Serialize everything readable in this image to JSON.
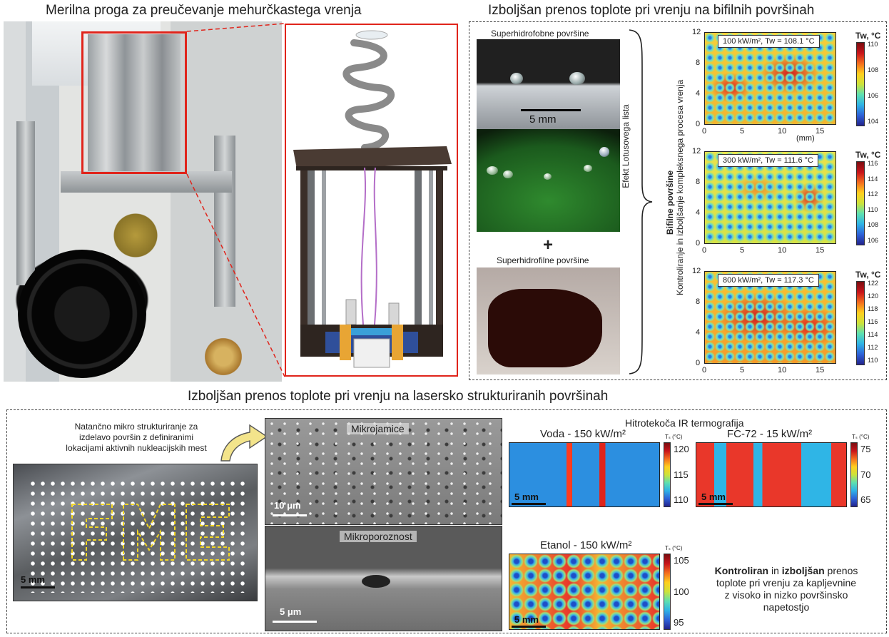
{
  "top_left": {
    "title": "Merilna proga za preučevanje mehurčkastega vrenja"
  },
  "top_right": {
    "title": "Izboljšan prenos toplote pri vrenju na bifilnih površinah",
    "superhydrophobic_label": "Superhidrofobne površine",
    "scale_5mm": "5 mm",
    "lotus_label": "Efekt Lotusovega lista",
    "plus": "+",
    "superhydrophilic_label": "Superhidrofilne površine",
    "biphilic_bold": "Bifilne površine",
    "biphilic_desc": "Kontroliranje in izboljšanje kompleksnega procesa vrenja",
    "axis_unit_mm": "(mm)",
    "colorbar_title": "Tw, °C",
    "maps": [
      {
        "title": "100 kW/m², Tw = 108.1 °C",
        "ticks": [
          "110",
          "108",
          "106",
          "104"
        ]
      },
      {
        "title": "300 kW/m², Tw = 111.6 °C",
        "ticks": [
          "116",
          "114",
          "112",
          "110",
          "108",
          "106"
        ]
      },
      {
        "title": "800 kW/m², Tw = 117.3 °C",
        "ticks": [
          "122",
          "120",
          "118",
          "116",
          "114",
          "112",
          "110"
        ]
      }
    ],
    "y_ticks": [
      "12",
      "8",
      "4",
      "0"
    ],
    "x_ticks": [
      "0",
      "5",
      "10",
      "15"
    ]
  },
  "bottom": {
    "title": "Izboljšan prenos toplote pri vrenju na lasersko strukturiranih površinah",
    "precision_text_1": "Natančno mikro strukturiranje za",
    "precision_text_2": "izdelavo površin z definiranimi",
    "precision_text_3": "lokacijami aktivnih nukleacijskih mest",
    "sample_scale": "5 mm",
    "sem_top_label": "Mikrojamice",
    "sem_top_scale": "10 μm",
    "sem_bottom_label": "Mikroporoznost",
    "sem_bottom_scale": "5 μm",
    "ir_title": "Hitrotekoča IR termografija",
    "water": {
      "title": "Voda - 150 kW/m²",
      "unit": "Tₛ (°C)",
      "ticks": [
        "120",
        "115",
        "110"
      ],
      "scale": "5 mm"
    },
    "fc72": {
      "title": "FC-72 - 15 kW/m²",
      "unit": "Tₛ (°C)",
      "ticks": [
        "75",
        "70",
        "65"
      ],
      "scale": "5 mm"
    },
    "ethanol": {
      "title": "Etanol - 150 kW/m²",
      "unit": "Tₛ (°C)",
      "ticks": [
        "105",
        "100",
        "95"
      ],
      "scale": "5 mm"
    },
    "conclusion_1a": "Kontroliran",
    "conclusion_1b": " in ",
    "conclusion_1c": "izboljšan",
    "conclusion_1d": " prenos",
    "conclusion_2": "toplote pri vrenju za kapljevnine",
    "conclusion_3": "z visoko in nizko površinsko",
    "conclusion_4": "napetostjo"
  }
}
